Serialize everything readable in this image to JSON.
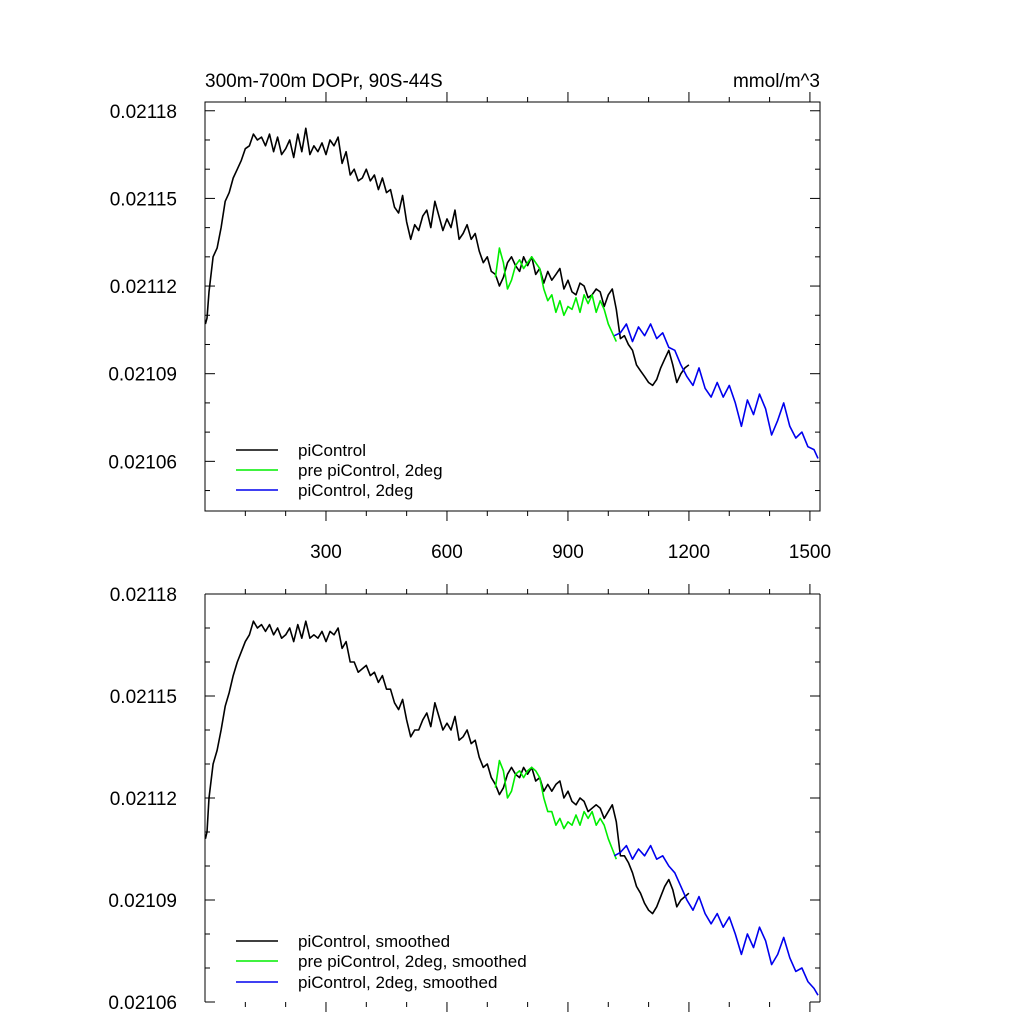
{
  "chart_data": [
    {
      "type": "line",
      "title": "300m-700m DOPr, 90S-44S",
      "units": "mmol/m^3",
      "xlabel": "",
      "ylabel": "",
      "xlim": [
        0,
        1525
      ],
      "ylim": [
        0.021043,
        0.021183
      ],
      "x_ticks": [
        300,
        600,
        900,
        1200,
        1500
      ],
      "x_tick_labels": [
        "300",
        "600",
        "900",
        "1200",
        "1500"
      ],
      "y_ticks": [
        0.02106,
        0.02109,
        0.02112,
        0.02115,
        0.02118
      ],
      "y_tick_labels": [
        "0.02106",
        "0.02109",
        "0.02112",
        "0.02115",
        "0.02118"
      ],
      "legend": "bottom-left",
      "grid": false,
      "series": [
        {
          "name": "piControl",
          "color": "#000000",
          "x": [
            1,
            5,
            10,
            20,
            30,
            40,
            50,
            60,
            70,
            80,
            90,
            100,
            110,
            120,
            130,
            140,
            150,
            160,
            170,
            180,
            190,
            200,
            210,
            220,
            230,
            240,
            250,
            260,
            270,
            280,
            290,
            300,
            310,
            320,
            330,
            340,
            350,
            360,
            370,
            380,
            390,
            400,
            410,
            420,
            430,
            440,
            450,
            460,
            470,
            480,
            490,
            500,
            510,
            520,
            530,
            540,
            550,
            560,
            570,
            580,
            590,
            600,
            610,
            620,
            630,
            640,
            650,
            660,
            670,
            680,
            690,
            700,
            710,
            720,
            730,
            740,
            750,
            760,
            770,
            780,
            790,
            800,
            810,
            820,
            830,
            840,
            850,
            860,
            870,
            880,
            890,
            900,
            910,
            920,
            930,
            940,
            950,
            960,
            970,
            980,
            990,
            1000,
            1010,
            1020,
            1030,
            1040,
            1050,
            1060,
            1070,
            1080,
            1090,
            1100,
            1110,
            1120,
            1130,
            1140,
            1150,
            1160,
            1170,
            1180,
            1190,
            1200
          ],
          "values": [
            0.021107,
            0.021109,
            0.021118,
            0.02113,
            0.021133,
            0.02114,
            0.021149,
            0.021152,
            0.021157,
            0.02116,
            0.021163,
            0.021167,
            0.021168,
            0.021172,
            0.02117,
            0.021171,
            0.021168,
            0.021172,
            0.021166,
            0.021171,
            0.021165,
            0.021167,
            0.02117,
            0.021164,
            0.021172,
            0.021166,
            0.021174,
            0.021165,
            0.021168,
            0.021166,
            0.021169,
            0.021165,
            0.02117,
            0.021168,
            0.021171,
            0.021162,
            0.021166,
            0.021158,
            0.02116,
            0.021156,
            0.021157,
            0.02116,
            0.021156,
            0.021158,
            0.021153,
            0.021157,
            0.021152,
            0.021153,
            0.021147,
            0.021145,
            0.021151,
            0.021142,
            0.021136,
            0.021141,
            0.021139,
            0.021144,
            0.021146,
            0.02114,
            0.021149,
            0.021144,
            0.021139,
            0.021143,
            0.02114,
            0.021146,
            0.021136,
            0.021138,
            0.021141,
            0.021136,
            0.021138,
            0.021132,
            0.021128,
            0.02113,
            0.021125,
            0.021124,
            0.02112,
            0.021123,
            0.021128,
            0.02113,
            0.021127,
            0.021125,
            0.02113,
            0.021127,
            0.02113,
            0.021124,
            0.021126,
            0.021121,
            0.021125,
            0.021122,
            0.021124,
            0.021126,
            0.021119,
            0.021122,
            0.021118,
            0.021117,
            0.021121,
            0.02112,
            0.021116,
            0.021117,
            0.021119,
            0.021118,
            0.021113,
            0.021117,
            0.021119,
            0.021112,
            0.021102,
            0.021103,
            0.0211,
            0.021098,
            0.021093,
            0.021091,
            0.021089,
            0.021087,
            0.021086,
            0.021088,
            0.021092,
            0.021095,
            0.021098,
            0.021093,
            0.021087,
            0.02109,
            0.021092,
            0.021093
          ]
        },
        {
          "name": "pre piControl, 2deg",
          "color": "#00ee00",
          "x": [
            720,
            730,
            740,
            750,
            760,
            770,
            780,
            790,
            800,
            810,
            820,
            830,
            840,
            850,
            860,
            870,
            880,
            890,
            900,
            910,
            920,
            930,
            940,
            950,
            960,
            970,
            980,
            990,
            1000,
            1010,
            1020
          ],
          "values": [
            0.021123,
            0.021133,
            0.021128,
            0.021119,
            0.021122,
            0.021127,
            0.021129,
            0.021126,
            0.021128,
            0.02113,
            0.021128,
            0.021126,
            0.021119,
            0.021115,
            0.021117,
            0.021111,
            0.021115,
            0.02111,
            0.021113,
            0.021112,
            0.021116,
            0.021111,
            0.021117,
            0.021114,
            0.021117,
            0.021111,
            0.021115,
            0.021112,
            0.021107,
            0.021104,
            0.021101
          ]
        },
        {
          "name": "piControl, 2deg",
          "color": "#0000ee",
          "x": [
            1015,
            1030,
            1045,
            1060,
            1075,
            1090,
            1105,
            1120,
            1135,
            1150,
            1165,
            1180,
            1195,
            1210,
            1225,
            1240,
            1255,
            1270,
            1285,
            1300,
            1315,
            1330,
            1345,
            1360,
            1375,
            1390,
            1405,
            1420,
            1435,
            1450,
            1465,
            1480,
            1495,
            1510,
            1520
          ],
          "values": [
            0.021103,
            0.021104,
            0.021107,
            0.021101,
            0.021106,
            0.021103,
            0.021107,
            0.021102,
            0.021104,
            0.021099,
            0.021098,
            0.021093,
            0.021089,
            0.021086,
            0.021092,
            0.021085,
            0.021082,
            0.021087,
            0.021082,
            0.021086,
            0.02108,
            0.021072,
            0.021081,
            0.021076,
            0.021083,
            0.021078,
            0.021069,
            0.021074,
            0.02108,
            0.021072,
            0.021068,
            0.02107,
            0.021065,
            0.021064,
            0.021061
          ]
        }
      ]
    },
    {
      "type": "line",
      "title": "",
      "xlabel": "",
      "ylabel": "",
      "xlim": [
        0,
        1525
      ],
      "ylim": [
        0.02106,
        0.02118
      ],
      "x_ticks": [
        300,
        600,
        900,
        1200,
        1500
      ],
      "y_ticks": [
        0.02106,
        0.02109,
        0.02112,
        0.02115,
        0.02118
      ],
      "y_tick_labels": [
        "0.02106",
        "0.02109",
        "0.02112",
        "0.02115",
        "0.02118"
      ],
      "legend": "bottom-left",
      "grid": false,
      "series": [
        {
          "name": "piControl, smoothed",
          "color": "#000000",
          "x": [
            1,
            5,
            10,
            20,
            30,
            40,
            50,
            60,
            70,
            80,
            90,
            100,
            110,
            120,
            130,
            140,
            150,
            160,
            170,
            180,
            190,
            200,
            210,
            220,
            230,
            240,
            250,
            260,
            270,
            280,
            290,
            300,
            310,
            320,
            330,
            340,
            350,
            360,
            370,
            380,
            390,
            400,
            410,
            420,
            430,
            440,
            450,
            460,
            470,
            480,
            490,
            500,
            510,
            520,
            530,
            540,
            550,
            560,
            570,
            580,
            590,
            600,
            610,
            620,
            630,
            640,
            650,
            660,
            670,
            680,
            690,
            700,
            710,
            720,
            730,
            740,
            750,
            760,
            770,
            780,
            790,
            800,
            810,
            820,
            830,
            840,
            850,
            860,
            870,
            880,
            890,
            900,
            910,
            920,
            930,
            940,
            950,
            960,
            970,
            980,
            990,
            1000,
            1010,
            1020,
            1030,
            1040,
            1050,
            1060,
            1070,
            1080,
            1090,
            1100,
            1110,
            1120,
            1130,
            1140,
            1150,
            1160,
            1170,
            1180,
            1190,
            1200
          ],
          "values": [
            0.021108,
            0.02111,
            0.02112,
            0.02113,
            0.021134,
            0.02114,
            0.021147,
            0.021151,
            0.021156,
            0.02116,
            0.021163,
            0.021166,
            0.021168,
            0.021172,
            0.02117,
            0.021171,
            0.021169,
            0.021171,
            0.021168,
            0.02117,
            0.021167,
            0.021168,
            0.02117,
            0.021166,
            0.021171,
            0.021167,
            0.021172,
            0.021167,
            0.021168,
            0.021167,
            0.021169,
            0.021166,
            0.021169,
            0.021168,
            0.02117,
            0.021164,
            0.021166,
            0.02116,
            0.02116,
            0.021157,
            0.021158,
            0.021159,
            0.021156,
            0.021157,
            0.021154,
            0.021156,
            0.021152,
            0.021152,
            0.021148,
            0.021146,
            0.021149,
            0.021143,
            0.021138,
            0.02114,
            0.02114,
            0.021143,
            0.021145,
            0.021141,
            0.021148,
            0.021144,
            0.02114,
            0.021142,
            0.02114,
            0.021144,
            0.021137,
            0.021138,
            0.02114,
            0.021136,
            0.021137,
            0.021132,
            0.021129,
            0.02113,
            0.021126,
            0.021124,
            0.021121,
            0.021123,
            0.021127,
            0.021129,
            0.021127,
            0.021126,
            0.021129,
            0.021127,
            0.021129,
            0.021125,
            0.021126,
            0.021122,
            0.021124,
            0.021122,
            0.021124,
            0.021125,
            0.02112,
            0.021122,
            0.021119,
            0.021118,
            0.02112,
            0.021119,
            0.021116,
            0.021117,
            0.021118,
            0.021117,
            0.021114,
            0.021116,
            0.021118,
            0.021113,
            0.021103,
            0.021103,
            0.021101,
            0.021098,
            0.021094,
            0.021092,
            0.021089,
            0.021087,
            0.021086,
            0.021088,
            0.021091,
            0.021094,
            0.021096,
            0.021093,
            0.021088,
            0.02109,
            0.021091,
            0.021092
          ]
        },
        {
          "name": "pre piControl, 2deg, smoothed",
          "color": "#00ee00",
          "x": [
            720,
            730,
            740,
            750,
            760,
            770,
            780,
            790,
            800,
            810,
            820,
            830,
            840,
            850,
            860,
            870,
            880,
            890,
            900,
            910,
            920,
            930,
            940,
            950,
            960,
            970,
            980,
            990,
            1000,
            1010,
            1020
          ],
          "values": [
            0.021123,
            0.021131,
            0.021128,
            0.02112,
            0.021122,
            0.021127,
            0.021128,
            0.021126,
            0.021128,
            0.021129,
            0.021128,
            0.021126,
            0.02112,
            0.021116,
            0.021116,
            0.021112,
            0.021114,
            0.021111,
            0.021113,
            0.021112,
            0.021115,
            0.021112,
            0.021116,
            0.021114,
            0.021116,
            0.021112,
            0.021114,
            0.021112,
            0.021108,
            0.021105,
            0.021102
          ]
        },
        {
          "name": "piControl, 2deg, smoothed",
          "color": "#0000ee",
          "x": [
            1015,
            1030,
            1045,
            1060,
            1075,
            1090,
            1105,
            1120,
            1135,
            1150,
            1165,
            1180,
            1195,
            1210,
            1225,
            1240,
            1255,
            1270,
            1285,
            1300,
            1315,
            1330,
            1345,
            1360,
            1375,
            1390,
            1405,
            1420,
            1435,
            1450,
            1465,
            1480,
            1495,
            1510,
            1520
          ],
          "values": [
            0.021103,
            0.021104,
            0.021106,
            0.021102,
            0.021105,
            0.021103,
            0.021106,
            0.021102,
            0.021103,
            0.0211,
            0.021098,
            0.021094,
            0.02109,
            0.021087,
            0.021091,
            0.021086,
            0.021083,
            0.021086,
            0.021082,
            0.021085,
            0.02108,
            0.021074,
            0.02108,
            0.021076,
            0.021082,
            0.021078,
            0.021071,
            0.021074,
            0.021079,
            0.021073,
            0.021069,
            0.02107,
            0.021066,
            0.021064,
            0.021062
          ]
        }
      ]
    }
  ]
}
